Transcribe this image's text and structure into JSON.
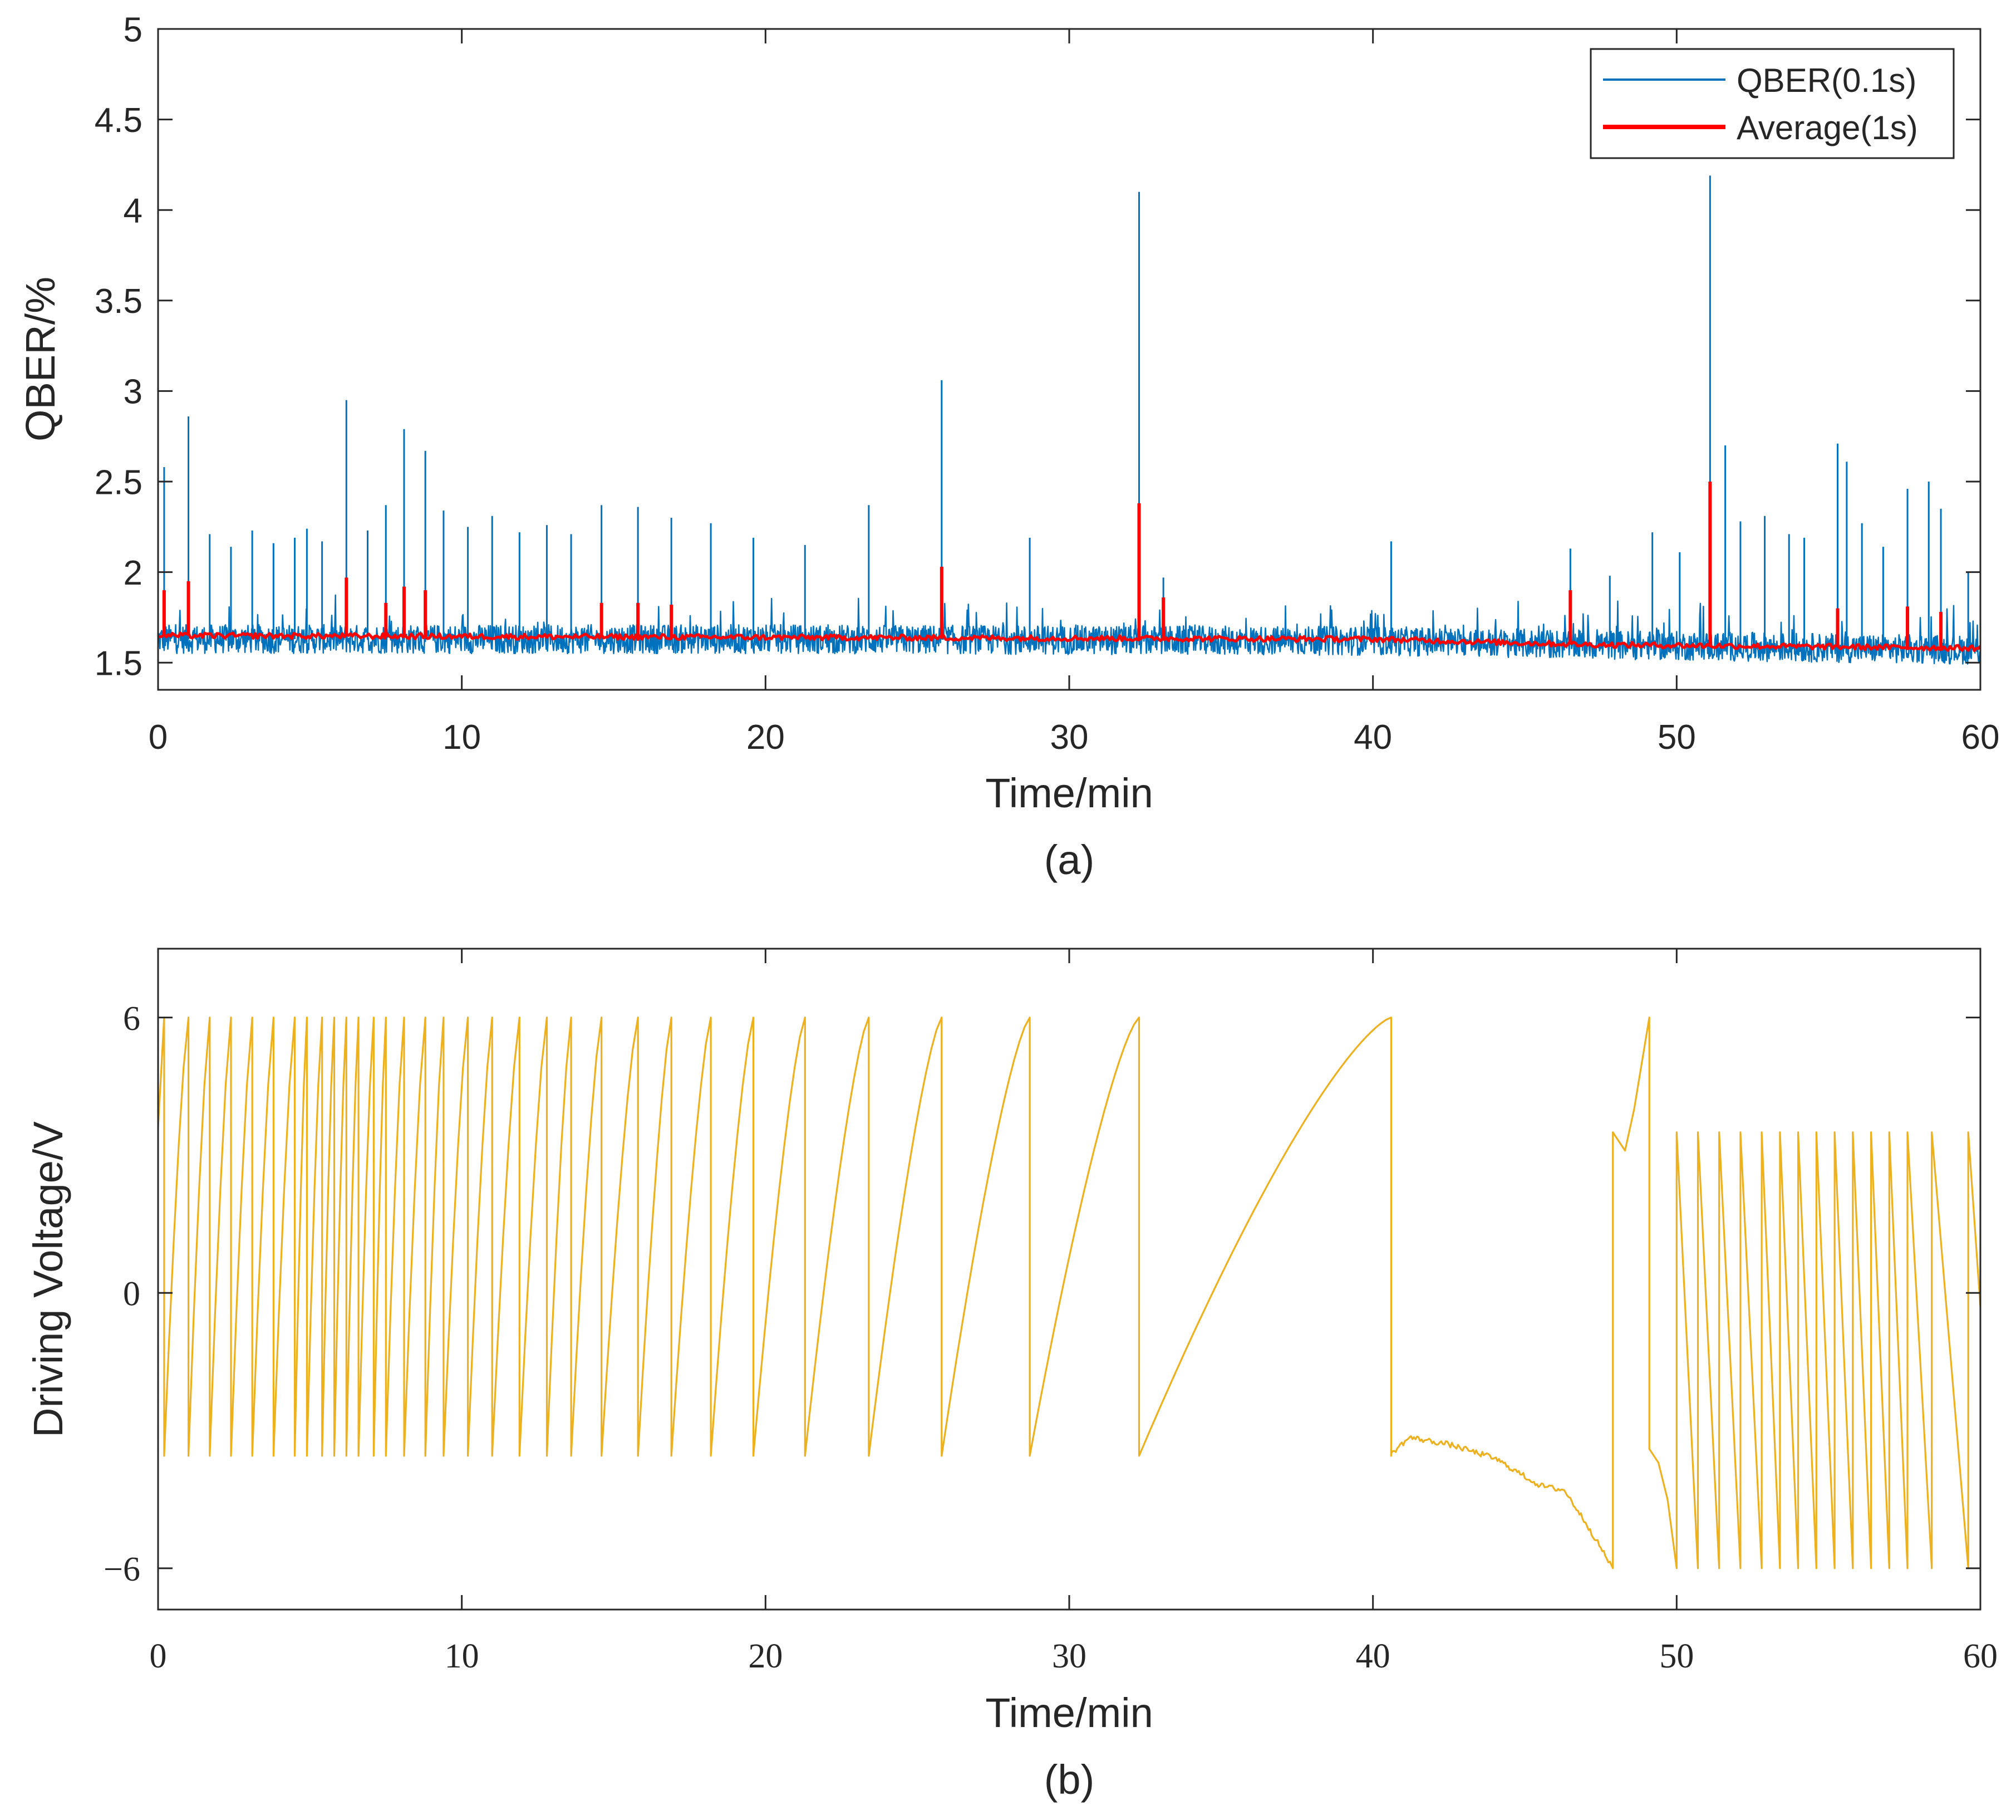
{
  "chart_data": [
    {
      "type": "line",
      "caption": "(a)",
      "xlabel": "Time/min",
      "ylabel": "QBER/%",
      "xlim": [
        0,
        60
      ],
      "ylim": [
        1.35,
        5
      ],
      "xticks": [
        0,
        10,
        20,
        30,
        40,
        50,
        60
      ],
      "xtick_labels": [
        "0",
        "10",
        "20",
        "30",
        "40",
        "50",
        "60"
      ],
      "yticks": [
        1.5,
        2,
        2.5,
        3,
        3.5,
        4,
        4.5,
        5
      ],
      "ytick_labels": [
        "1.5",
        "2",
        "2.5",
        "3",
        "3.5",
        "4",
        "4.5",
        "5"
      ],
      "grid": false,
      "legend_position": "top-right",
      "series": [
        {
          "name": "QBER(0.1s)",
          "color": "#0072BD",
          "baseline": [
            [
              0,
              1.63
            ],
            [
              20,
              1.63
            ],
            [
              40,
              1.62
            ],
            [
              47,
              1.6
            ],
            [
              60,
              1.57
            ]
          ],
          "noise_amplitude": 0.08,
          "spikes": [
            [
              0.2,
              2.58
            ],
            [
              1.0,
              2.86
            ],
            [
              1.7,
              2.21
            ],
            [
              2.4,
              2.14
            ],
            [
              3.1,
              2.23
            ],
            [
              3.8,
              2.16
            ],
            [
              4.5,
              2.19
            ],
            [
              4.9,
              2.24
            ],
            [
              5.4,
              2.17
            ],
            [
              6.2,
              2.95
            ],
            [
              6.9,
              2.23
            ],
            [
              7.5,
              2.37
            ],
            [
              8.1,
              2.79
            ],
            [
              8.8,
              2.67
            ],
            [
              9.4,
              2.34
            ],
            [
              10.2,
              2.25
            ],
            [
              11.0,
              2.31
            ],
            [
              11.9,
              2.22
            ],
            [
              12.8,
              2.26
            ],
            [
              13.6,
              2.21
            ],
            [
              14.6,
              2.37
            ],
            [
              15.8,
              2.36
            ],
            [
              16.9,
              2.3
            ],
            [
              18.2,
              2.27
            ],
            [
              19.6,
              2.19
            ],
            [
              21.3,
              2.15
            ],
            [
              23.4,
              2.37
            ],
            [
              25.8,
              3.06
            ],
            [
              28.7,
              2.19
            ],
            [
              32.3,
              4.1
            ],
            [
              33.1,
              1.97
            ],
            [
              40.6,
              2.17
            ],
            [
              46.5,
              2.13
            ],
            [
              47.8,
              1.98
            ],
            [
              49.2,
              2.22
            ],
            [
              50.1,
              2.11
            ],
            [
              51.1,
              4.19
            ],
            [
              51.6,
              2.7
            ],
            [
              52.1,
              2.28
            ],
            [
              52.9,
              2.31
            ],
            [
              53.7,
              2.21
            ],
            [
              54.2,
              2.19
            ],
            [
              55.3,
              2.71
            ],
            [
              55.6,
              2.61
            ],
            [
              56.1,
              2.27
            ],
            [
              56.8,
              2.14
            ],
            [
              57.6,
              2.46
            ],
            [
              58.3,
              2.5
            ],
            [
              58.7,
              2.35
            ],
            [
              59.6,
              2.0
            ]
          ]
        },
        {
          "name": "Average(1s)",
          "color": "#FF0000",
          "baseline": [
            [
              0,
              1.65
            ],
            [
              20,
              1.64
            ],
            [
              40,
              1.63
            ],
            [
              47,
              1.6
            ],
            [
              60,
              1.58
            ]
          ],
          "noise_amplitude": 0.015,
          "spikes": [
            [
              0.2,
              1.9
            ],
            [
              1.0,
              1.95
            ],
            [
              6.2,
              1.97
            ],
            [
              7.5,
              1.83
            ],
            [
              8.1,
              1.92
            ],
            [
              8.8,
              1.9
            ],
            [
              14.6,
              1.83
            ],
            [
              15.8,
              1.83
            ],
            [
              16.9,
              1.82
            ],
            [
              25.8,
              2.03
            ],
            [
              32.3,
              2.38
            ],
            [
              33.1,
              1.86
            ],
            [
              46.5,
              1.9
            ],
            [
              51.1,
              2.5
            ],
            [
              55.3,
              1.8
            ],
            [
              57.6,
              1.81
            ],
            [
              58.7,
              1.78
            ]
          ]
        }
      ]
    },
    {
      "type": "line",
      "caption": "(b)",
      "xlabel": "Time/min",
      "ylabel": "Driving Voltage/V",
      "xlim": [
        0,
        60
      ],
      "ylim": [
        -6.9,
        7.5
      ],
      "xticks": [
        0,
        10,
        20,
        30,
        40,
        50,
        60
      ],
      "xtick_labels": [
        "0",
        "10",
        "20",
        "30",
        "40",
        "50",
        "60"
      ],
      "yticks": [
        -6,
        0,
        6
      ],
      "ytick_labels": [
        "−6",
        "0",
        "6"
      ],
      "grid": false,
      "series": [
        {
          "name": "Driving Voltage",
          "color": "#EDB120",
          "resets": [
            0.2,
            1.0,
            1.7,
            2.4,
            3.1,
            3.8,
            4.5,
            4.9,
            5.4,
            5.8,
            6.2,
            6.6,
            7.1,
            7.5,
            8.1,
            8.8,
            9.4,
            10.2,
            11.0,
            11.9,
            12.8,
            13.6,
            14.6,
            15.8,
            16.9,
            18.2,
            19.6,
            21.3,
            23.4,
            25.8,
            28.7,
            32.3,
            40.6
          ],
          "points": [
            [
              40.6,
              -3.5
            ],
            [
              41.2,
              -3.15
            ],
            [
              42.5,
              -3.3
            ],
            [
              44.0,
              -3.6
            ],
            [
              45.5,
              -4.2
            ],
            [
              46.3,
              -4.3
            ],
            [
              47.0,
              -5.0
            ],
            [
              47.9,
              -6.0
            ],
            [
              47.9,
              3.5
            ],
            [
              48.3,
              3.1
            ],
            [
              48.6,
              4.0
            ],
            [
              49.1,
              6.0
            ],
            [
              49.1,
              -3.4
            ],
            [
              49.4,
              -3.7
            ],
            [
              49.7,
              -4.5
            ],
            [
              50.0,
              -6.0
            ],
            [
              50.0,
              3.5
            ],
            [
              50.7,
              -6.0
            ],
            [
              50.7,
              3.5
            ],
            [
              51.4,
              -6.0
            ],
            [
              51.4,
              3.5
            ],
            [
              52.1,
              -6.0
            ],
            [
              52.1,
              3.5
            ],
            [
              52.8,
              -6.0
            ],
            [
              52.8,
              3.5
            ],
            [
              53.4,
              -6.0
            ],
            [
              53.4,
              3.5
            ],
            [
              54.0,
              -6.0
            ],
            [
              54.0,
              3.5
            ],
            [
              54.6,
              -6.0
            ],
            [
              54.6,
              3.5
            ],
            [
              55.2,
              -6.0
            ],
            [
              55.2,
              3.5
            ],
            [
              55.8,
              -6.0
            ],
            [
              55.8,
              3.5
            ],
            [
              56.4,
              -6.0
            ],
            [
              56.4,
              3.5
            ],
            [
              57.0,
              -6.0
            ],
            [
              57.0,
              3.5
            ],
            [
              57.6,
              -6.0
            ],
            [
              57.6,
              3.5
            ],
            [
              58.4,
              -6.0
            ],
            [
              58.4,
              3.5
            ],
            [
              59.6,
              -6.0
            ],
            [
              59.6,
              3.5
            ],
            [
              60.0,
              -0.3
            ]
          ]
        }
      ]
    }
  ]
}
